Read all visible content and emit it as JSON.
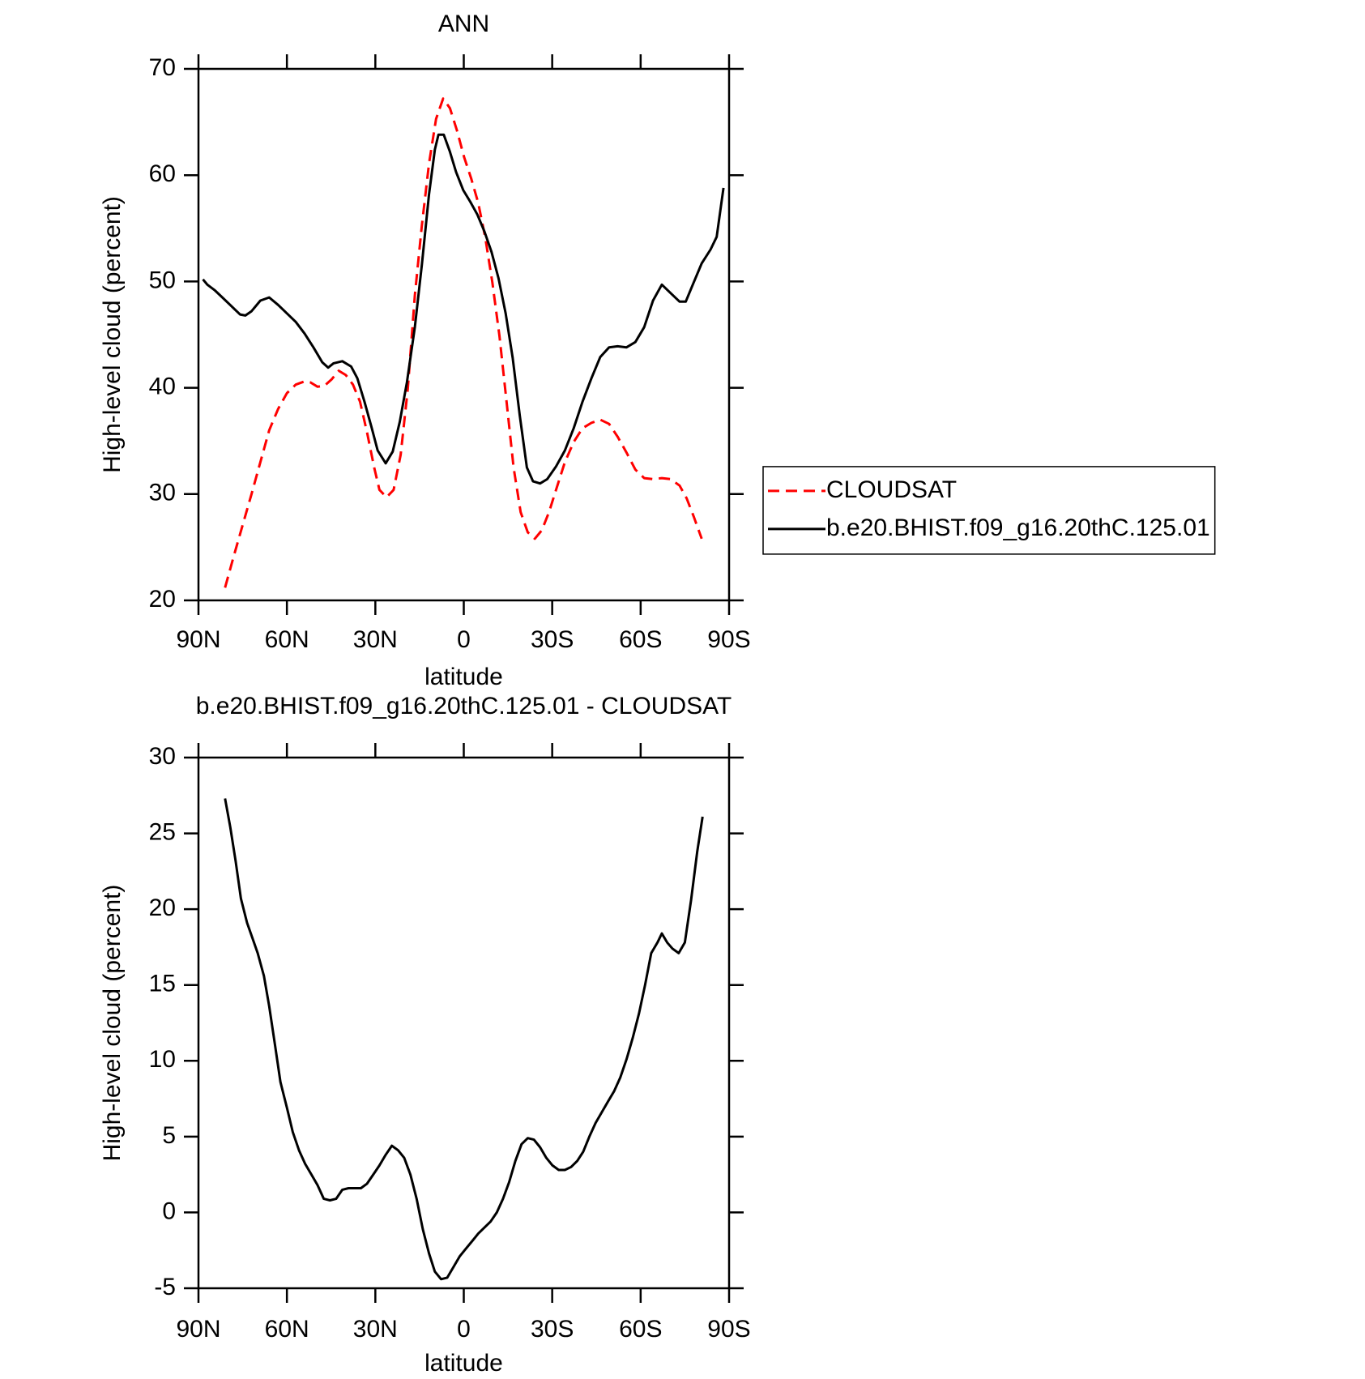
{
  "chart_data": [
    {
      "type": "line",
      "title": "ANN",
      "xlabel": "latitude",
      "ylabel": "High-level cloud (percent)",
      "xlim": [
        90,
        -90
      ],
      "xticks": [
        {
          "value": 90,
          "label": "90N"
        },
        {
          "value": 60,
          "label": "60N"
        },
        {
          "value": 30,
          "label": "30N"
        },
        0,
        {
          "value": -30,
          "label": "30S"
        },
        {
          "value": -60,
          "label": "60S"
        },
        {
          "value": -90,
          "label": "90S"
        }
      ],
      "ylim": [
        20,
        70
      ],
      "yticks": [
        20,
        30,
        40,
        50,
        60,
        70
      ],
      "legend": "right",
      "series": [
        {
          "name": "CLOUDSAT",
          "color": "#ff0000",
          "line_style": "dashed",
          "x": [
            81.0,
            78.0,
            75.0,
            72.0,
            69.0,
            66.0,
            63.0,
            60.0,
            57.0,
            54.0,
            52.0,
            49.6,
            47.2,
            44.8,
            42.4,
            40.0,
            37.6,
            35.2,
            32.8,
            30.4,
            28.6,
            26.2,
            23.8,
            21.4,
            19.0,
            16.6,
            14.2,
            11.8,
            9.4,
            7.0,
            4.7,
            2.3,
            -0.1,
            -2.5,
            -4.9,
            -7.3,
            -9.7,
            -12.1,
            -14.5,
            -16.9,
            -19.3,
            -21.7,
            -24.1,
            -26.5,
            -28.9,
            -31.3,
            -34.3,
            -37.3,
            -40.3,
            -43.3,
            -46.3,
            -49.3,
            -52.2,
            -55.2,
            -58.2,
            -61.2,
            -64.2,
            -67.2,
            -70.2,
            -73.2,
            -75.6,
            -78.0,
            -80.7
          ],
          "values": [
            21.2,
            24.2,
            27.1,
            30.0,
            33.0,
            36.0,
            38.0,
            39.5,
            40.3,
            40.6,
            40.5,
            40.1,
            40.2,
            40.8,
            41.6,
            41.2,
            40.3,
            38.7,
            35.8,
            32.5,
            30.4,
            29.7,
            30.4,
            33.7,
            39.9,
            48.7,
            55.3,
            61.1,
            65.3,
            67.2,
            66.3,
            64.2,
            61.7,
            59.7,
            57.4,
            54.1,
            49.9,
            44.9,
            38.7,
            32.5,
            28.3,
            26.4,
            25.8,
            26.6,
            28.3,
            30.4,
            33.0,
            34.9,
            36.2,
            36.7,
            37.0,
            36.6,
            35.4,
            33.9,
            32.3,
            31.5,
            31.4,
            31.5,
            31.4,
            30.8,
            29.6,
            27.9,
            25.8
          ]
        },
        {
          "name": "b.e20.BHIST.f09_g16.20thC.125.01",
          "color": "#000000",
          "line_style": "solid",
          "x": [
            88.5,
            87,
            84.6,
            81.9,
            78.9,
            75.9,
            74.1,
            72,
            69,
            66,
            63,
            60,
            57,
            54,
            51,
            48,
            46,
            44.2,
            41.2,
            38.2,
            36.1,
            33.7,
            31.3,
            29.2,
            26.5,
            24.1,
            21.7,
            19.3,
            16.6,
            14.2,
            11.8,
            9.8,
            8.6,
            6.8,
            4.7,
            2.6,
            0.2,
            -2.2,
            -4.6,
            -7.0,
            -9.4,
            -11.8,
            -14.2,
            -16.6,
            -19.0,
            -21.4,
            -23.5,
            -25.9,
            -28.3,
            -31.3,
            -34.3,
            -37.3,
            -40.3,
            -43.3,
            -46.3,
            -49.3,
            -52.2,
            -55.2,
            -58.2,
            -61.2,
            -64.2,
            -67.2,
            -70.2,
            -73.2,
            -75.3,
            -77.7,
            -80.7,
            -83.7,
            -85.8,
            -88.1
          ],
          "values": [
            50.2,
            49.7,
            49.2,
            48.5,
            47.7,
            46.9,
            46.8,
            47.2,
            48.2,
            48.5,
            47.8,
            47.0,
            46.2,
            45.1,
            43.8,
            42.4,
            41.9,
            42.3,
            42.5,
            42.0,
            40.9,
            38.7,
            36.3,
            34.1,
            32.9,
            34.0,
            36.8,
            40.5,
            45.7,
            51.6,
            58.2,
            62.4,
            63.8,
            63.8,
            62.2,
            60.3,
            58.6,
            57.5,
            56.3,
            54.7,
            52.8,
            50.3,
            47.0,
            42.8,
            37.4,
            32.5,
            31.2,
            31.0,
            31.4,
            32.6,
            34.1,
            36.2,
            38.7,
            40.9,
            42.9,
            43.8,
            43.9,
            43.8,
            44.3,
            45.7,
            48.2,
            49.7,
            48.9,
            48.1,
            48.1,
            49.7,
            51.7,
            53.0,
            54.2,
            58.8
          ]
        }
      ]
    },
    {
      "type": "line",
      "title": "b.e20.BHIST.f09_g16.20thC.125.01 - CLOUDSAT",
      "xlabel": "latitude",
      "ylabel": "High-level cloud (percent)",
      "xlim": [
        90,
        -90
      ],
      "xticks": [
        {
          "value": 90,
          "label": "90N"
        },
        {
          "value": 60,
          "label": "60N"
        },
        {
          "value": 30,
          "label": "30N"
        },
        0,
        {
          "value": -30,
          "label": "30S"
        },
        {
          "value": -60,
          "label": "60S"
        },
        {
          "value": -90,
          "label": "90S"
        }
      ],
      "ylim": [
        -5,
        30
      ],
      "yticks": [
        -5,
        0,
        5,
        10,
        15,
        20,
        25,
        30
      ],
      "series": [
        {
          "color": "#000000",
          "line_style": "solid",
          "x": [
            81.0,
            79.2,
            77.4,
            75.6,
            73.5,
            71.7,
            69.9,
            67.8,
            66.0,
            64.0,
            62.2,
            60.0,
            58.0,
            55.9,
            53.8,
            51.7,
            49.6,
            47.5,
            45.4,
            43.3,
            41.2,
            39.1,
            37.0,
            34.9,
            32.8,
            30.7,
            28.6,
            26.5,
            24.4,
            22.3,
            20.2,
            18.1,
            16.0,
            13.9,
            11.8,
            9.8,
            7.7,
            5.6,
            3.5,
            1.4,
            -0.7,
            -2.8,
            -4.9,
            -7.0,
            -9.1,
            -11.2,
            -13.3,
            -15.4,
            -17.5,
            -19.6,
            -21.7,
            -23.8,
            -25.9,
            -28.0,
            -30.1,
            -32.2,
            -34.3,
            -36.4,
            -38.5,
            -40.5,
            -42.6,
            -44.7,
            -46.8,
            -48.9,
            -51.0,
            -53.1,
            -55.2,
            -57.3,
            -59.4,
            -61.5,
            -63.6,
            -65.7,
            -67.2,
            -69.0,
            -70.8,
            -72.9,
            -75.0,
            -77.1,
            -79.2,
            -81.0
          ],
          "values": [
            27.3,
            25.4,
            23.2,
            20.7,
            19.1,
            18.1,
            17.1,
            15.6,
            13.6,
            11.0,
            8.6,
            6.9,
            5.3,
            4.1,
            3.2,
            2.5,
            1.8,
            0.9,
            0.8,
            0.9,
            1.5,
            1.6,
            1.6,
            1.6,
            1.9,
            2.5,
            3.1,
            3.8,
            4.4,
            4.1,
            3.6,
            2.5,
            0.9,
            -1.1,
            -2.7,
            -3.9,
            -4.4,
            -4.3,
            -3.6,
            -2.9,
            -2.4,
            -1.9,
            -1.4,
            -1.0,
            -0.6,
            0.0,
            0.9,
            2.0,
            3.4,
            4.5,
            4.9,
            4.8,
            4.3,
            3.6,
            3.1,
            2.8,
            2.8,
            3.0,
            3.4,
            4.0,
            5.0,
            5.9,
            6.6,
            7.3,
            8.0,
            8.9,
            10.1,
            11.5,
            13.1,
            15.0,
            17.1,
            17.8,
            18.4,
            17.8,
            17.4,
            17.1,
            17.8,
            20.6,
            23.8,
            26.1
          ]
        }
      ]
    }
  ]
}
